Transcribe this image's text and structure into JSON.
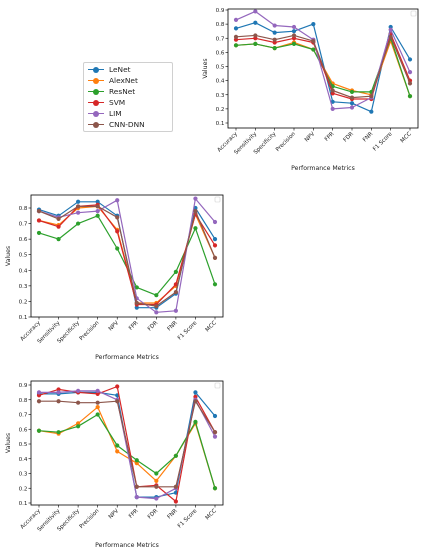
{
  "legend": {
    "entries": [
      {
        "label": "LeNet",
        "color": "#1f77b4"
      },
      {
        "label": "AlexNet",
        "color": "#ff7f0e"
      },
      {
        "label": "ResNet",
        "color": "#2ca02c"
      },
      {
        "label": "SVM",
        "color": "#d62728"
      },
      {
        "label": "LIM",
        "color": "#9467bd"
      },
      {
        "label": "CNN-DNN",
        "color": "#8c564b"
      }
    ]
  },
  "chart_data": [
    {
      "type": "line",
      "xlabel": "Performance Metrics",
      "ylabel": "Values",
      "categories": [
        "Accuracy",
        "Sensitivity",
        "Specificity",
        "Precision",
        "NPV",
        "FPR",
        "FDR",
        "FNR",
        "F1 Score",
        "MCC"
      ],
      "ylim": [
        0.1,
        0.9
      ],
      "yticks": [
        "0.1",
        "0.2",
        "0.3",
        "0.4",
        "0.5",
        "0.6",
        "0.7",
        "0.8",
        "0.9"
      ],
      "grid": false,
      "legend_placement": "outside-left",
      "series": [
        {
          "name": "LeNet",
          "values": [
            0.77,
            0.81,
            0.74,
            0.75,
            0.8,
            0.25,
            0.24,
            0.18,
            0.78,
            0.55
          ]
        },
        {
          "name": "AlexNet",
          "values": [
            0.65,
            0.66,
            0.63,
            0.67,
            0.62,
            0.38,
            0.33,
            0.3,
            0.68,
            0.29
          ]
        },
        {
          "name": "ResNet",
          "values": [
            0.65,
            0.66,
            0.63,
            0.66,
            0.62,
            0.36,
            0.32,
            0.32,
            0.7,
            0.29
          ]
        },
        {
          "name": "SVM",
          "values": [
            0.69,
            0.7,
            0.67,
            0.7,
            0.67,
            0.31,
            0.27,
            0.27,
            0.73,
            0.4
          ]
        },
        {
          "name": "LIM",
          "values": [
            0.83,
            0.89,
            0.79,
            0.78,
            0.69,
            0.2,
            0.21,
            0.28,
            0.76,
            0.46
          ]
        },
        {
          "name": "CNN-DNN",
          "values": [
            0.71,
            0.72,
            0.69,
            0.72,
            0.68,
            0.33,
            0.28,
            0.29,
            0.71,
            0.38
          ]
        }
      ]
    },
    {
      "type": "line",
      "xlabel": "Performance Metrics",
      "ylabel": "Values",
      "categories": [
        "Accuracy",
        "Sensitivity",
        "Specificity",
        "Precision",
        "NPV",
        "FPR",
        "FDR",
        "FNR",
        "F1 Score",
        "MCC"
      ],
      "ylim": [
        0.1,
        0.9
      ],
      "yticks": [
        "0.1",
        "0.2",
        "0.3",
        "0.4",
        "0.5",
        "0.6",
        "0.7",
        "0.8"
      ],
      "grid": false,
      "legend_placement": "top-right (empty box)",
      "series": [
        {
          "name": "LeNet",
          "values": [
            0.79,
            0.75,
            0.84,
            0.84,
            0.75,
            0.16,
            0.16,
            0.25,
            0.8,
            0.6
          ]
        },
        {
          "name": "AlexNet",
          "values": [
            0.72,
            0.69,
            0.8,
            0.81,
            0.66,
            0.19,
            0.19,
            0.3,
            0.76,
            0.48
          ]
        },
        {
          "name": "ResNet",
          "values": [
            0.64,
            0.6,
            0.7,
            0.75,
            0.54,
            0.29,
            0.24,
            0.39,
            0.67,
            0.31
          ]
        },
        {
          "name": "SVM",
          "values": [
            0.72,
            0.68,
            0.81,
            0.82,
            0.65,
            0.18,
            0.18,
            0.31,
            0.76,
            0.56
          ]
        },
        {
          "name": "LIM",
          "values": [
            0.78,
            0.74,
            0.77,
            0.78,
            0.85,
            0.22,
            0.13,
            0.14,
            0.86,
            0.71
          ]
        },
        {
          "name": "CNN-DNN",
          "values": [
            0.78,
            0.73,
            0.81,
            0.81,
            0.74,
            0.19,
            0.17,
            0.26,
            0.78,
            0.48
          ]
        }
      ]
    },
    {
      "type": "line",
      "xlabel": "Performance Metrics",
      "ylabel": "Values",
      "categories": [
        "Accuracy",
        "Sensitivity",
        "Specificity",
        "Precision",
        "NPV",
        "FPR",
        "FDR",
        "FNR",
        "F1 Score",
        "MCC"
      ],
      "ylim": [
        0.1,
        0.9
      ],
      "yticks": [
        "0.1",
        "0.2",
        "0.3",
        "0.4",
        "0.5",
        "0.6",
        "0.7",
        "0.8",
        "0.9"
      ],
      "grid": false,
      "legend_placement": "top-right (empty box)",
      "series": [
        {
          "name": "LeNet",
          "values": [
            0.84,
            0.84,
            0.85,
            0.85,
            0.83,
            0.14,
            0.14,
            0.17,
            0.85,
            0.69
          ]
        },
        {
          "name": "AlexNet",
          "values": [
            0.59,
            0.57,
            0.64,
            0.75,
            0.45,
            0.37,
            0.25,
            0.42,
            0.64,
            0.2
          ]
        },
        {
          "name": "ResNet",
          "values": [
            0.59,
            0.58,
            0.62,
            0.7,
            0.49,
            0.39,
            0.3,
            0.42,
            0.65,
            0.2
          ]
        },
        {
          "name": "SVM",
          "values": [
            0.83,
            0.87,
            0.85,
            0.84,
            0.89,
            0.21,
            0.22,
            0.11,
            0.82,
            0.58
          ]
        },
        {
          "name": "LIM",
          "values": [
            0.85,
            0.85,
            0.86,
            0.86,
            0.8,
            0.14,
            0.13,
            0.2,
            0.8,
            0.55
          ]
        },
        {
          "name": "CNN-DNN",
          "values": [
            0.79,
            0.79,
            0.78,
            0.78,
            0.79,
            0.21,
            0.21,
            0.21,
            0.79,
            0.58
          ]
        }
      ]
    }
  ]
}
